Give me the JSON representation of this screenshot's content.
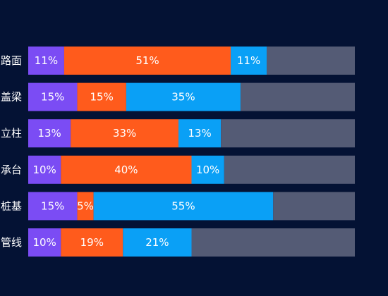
{
  "chart_data": {
    "type": "bar",
    "orientation": "horizontal",
    "stacked": true,
    "categories": [
      "路面",
      "盖梁",
      "立柱",
      "承台",
      "桩基",
      "管线"
    ],
    "xlim": [
      0,
      100
    ],
    "grid": false,
    "legend": "none",
    "series": [
      {
        "color": "#7b4cf4",
        "values": [
          11,
          15,
          13,
          10,
          15,
          10
        ]
      },
      {
        "color": "#ff5b1c",
        "values": [
          51,
          15,
          33,
          40,
          5,
          19
        ]
      },
      {
        "color": "#0aa0f6",
        "values": [
          11,
          35,
          13,
          10,
          55,
          21
        ]
      },
      {
        "color": "#545b75",
        "values": [
          27,
          35,
          41,
          40,
          25,
          50
        ]
      }
    ],
    "data_labels": [
      [
        "11%",
        "51%",
        "11%"
      ],
      [
        "15%",
        "15%",
        "35%"
      ],
      [
        "13%",
        "33%",
        "13%"
      ],
      [
        "10%",
        "40%",
        "10%"
      ],
      [
        "15%",
        "5%",
        "55%"
      ],
      [
        "10%",
        "19%",
        "21%"
      ]
    ]
  }
}
